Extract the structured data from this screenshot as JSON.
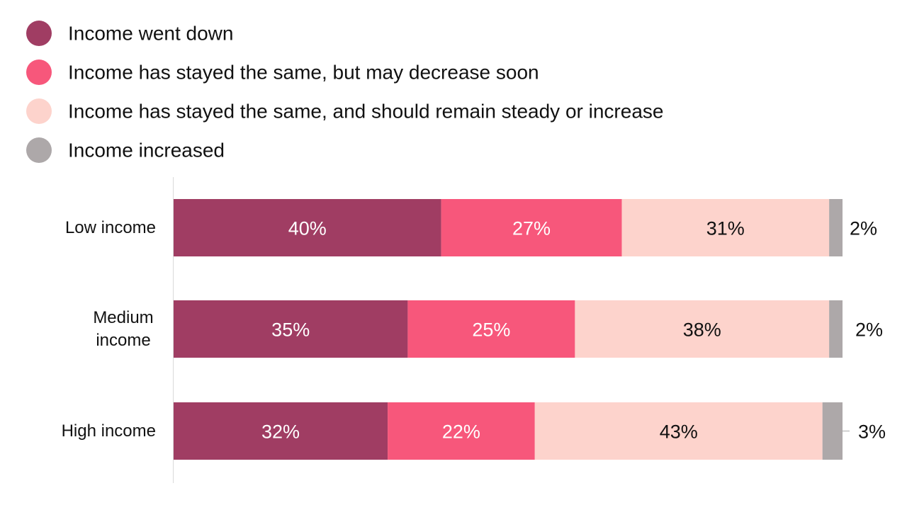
{
  "chart_data": {
    "type": "bar",
    "orientation": "horizontal",
    "stacked": true,
    "title": "",
    "xlabel": "",
    "ylabel": "",
    "xlim": [
      0,
      100
    ],
    "legend_position": "top-left",
    "grid": false,
    "categories": [
      [
        "Low income"
      ],
      [
        "Medium",
        "income"
      ],
      [
        "High income"
      ]
    ],
    "series": [
      {
        "name": "Income went down",
        "color": "#a03d63",
        "label_color": "#ffffff",
        "values": [
          40,
          35,
          32
        ],
        "labels": [
          "40%",
          "35%",
          "32%"
        ]
      },
      {
        "name": "Income has stayed the same, but may decrease soon",
        "color": "#f7577b",
        "label_color": "#ffffff",
        "values": [
          27,
          25,
          22
        ],
        "labels": [
          "27%",
          "25%",
          "22%"
        ]
      },
      {
        "name": "Income has stayed the same, and should remain steady or increase",
        "color": "#fdd3cc",
        "label_color": "#111111",
        "values": [
          31,
          38,
          43
        ],
        "labels": [
          "31%",
          "38%",
          "43%"
        ]
      },
      {
        "name": "Income increased",
        "color": "#ada8a9",
        "label_color": "#111111",
        "values": [
          2,
          2,
          3
        ],
        "labels": [
          "2%",
          "2%",
          "3%"
        ],
        "label_outside": true
      }
    ]
  }
}
